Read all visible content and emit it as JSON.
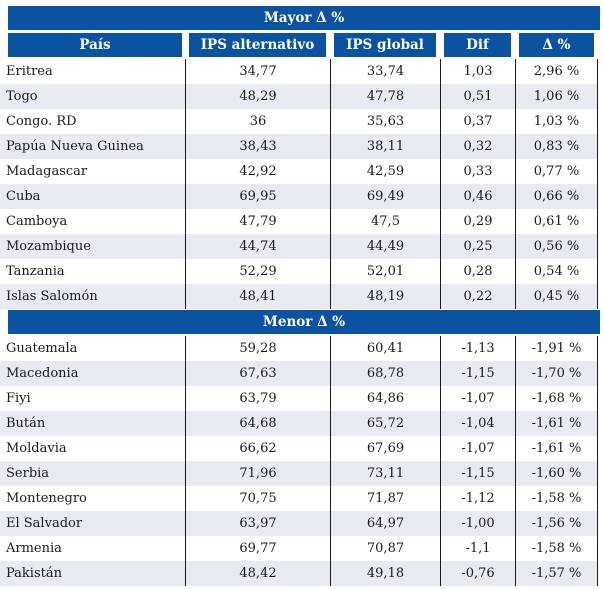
{
  "colors": {
    "header_blue": "#0b53a0",
    "stripe_light_blue": "#e9e9f2",
    "line_black": "#1a1a1a",
    "text": "#1a1a1a"
  },
  "columns": [
    "País",
    "IPS alternativo",
    "IPS global",
    "Dif",
    "Δ %"
  ],
  "sections": {
    "mayor": {
      "title": "Mayor Δ %"
    },
    "menor": {
      "title": "Menor Δ %"
    }
  },
  "mayor_rows": [
    {
      "country": "Eritrea",
      "ips_alt": "34,77",
      "ips_global": "33,74",
      "dif": "1,03",
      "delta_pct": "2,96 %"
    },
    {
      "country": "Togo",
      "ips_alt": "48,29",
      "ips_global": "47,78",
      "dif": "0,51",
      "delta_pct": "1,06 %"
    },
    {
      "country": "Congo. RD",
      "ips_alt": "36",
      "ips_global": "35,63",
      "dif": "0,37",
      "delta_pct": "1,03 %"
    },
    {
      "country": "Papúa Nueva Guinea",
      "ips_alt": "38,43",
      "ips_global": "38,11",
      "dif": "0,32",
      "delta_pct": "0,83 %"
    },
    {
      "country": "Madagascar",
      "ips_alt": "42,92",
      "ips_global": "42,59",
      "dif": "0,33",
      "delta_pct": "0,77 %"
    },
    {
      "country": "Cuba",
      "ips_alt": "69,95",
      "ips_global": "69,49",
      "dif": "0,46",
      "delta_pct": "0,66 %"
    },
    {
      "country": "Camboya",
      "ips_alt": "47,79",
      "ips_global": "47,5",
      "dif": "0,29",
      "delta_pct": "0,61 %"
    },
    {
      "country": "Mozambique",
      "ips_alt": "44,74",
      "ips_global": "44,49",
      "dif": "0,25",
      "delta_pct": "0,56 %"
    },
    {
      "country": "Tanzania",
      "ips_alt": "52,29",
      "ips_global": "52,01",
      "dif": "0,28",
      "delta_pct": "0,54 %"
    },
    {
      "country": "Islas Salomón",
      "ips_alt": "48,41",
      "ips_global": "48,19",
      "dif": "0,22",
      "delta_pct": "0,45 %"
    }
  ],
  "menor_rows": [
    {
      "country": "Guatemala",
      "ips_alt": "59,28",
      "ips_global": "60,41",
      "dif": "-1,13",
      "delta_pct": "-1,91 %"
    },
    {
      "country": "Macedonia",
      "ips_alt": "67,63",
      "ips_global": "68,78",
      "dif": "-1,15",
      "delta_pct": "-1,70 %"
    },
    {
      "country": "Fiyi",
      "ips_alt": "63,79",
      "ips_global": "64,86",
      "dif": "-1,07",
      "delta_pct": "-1,68 %"
    },
    {
      "country": "Bután",
      "ips_alt": "64,68",
      "ips_global": "65,72",
      "dif": "-1,04",
      "delta_pct": "-1,61 %"
    },
    {
      "country": "Moldavia",
      "ips_alt": "66,62",
      "ips_global": "67,69",
      "dif": "-1,07",
      "delta_pct": "-1,61 %"
    },
    {
      "country": "Serbia",
      "ips_alt": "71,96",
      "ips_global": "73,11",
      "dif": "-1,15",
      "delta_pct": "-1,60 %"
    },
    {
      "country": "Montenegro",
      "ips_alt": "70,75",
      "ips_global": "71,87",
      "dif": "-1,12",
      "delta_pct": "-1,58 %"
    },
    {
      "country": "El Salvador",
      "ips_alt": "63,97",
      "ips_global": "64,97",
      "dif": "-1,00",
      "delta_pct": "-1,56 %"
    },
    {
      "country": "Armenia",
      "ips_alt": "69,77",
      "ips_global": "70,87",
      "dif": "-1,1",
      "delta_pct": "-1,58 %"
    },
    {
      "country": "Pakistán",
      "ips_alt": "48,42",
      "ips_global": "49,18",
      "dif": "-0,76",
      "delta_pct": "-1,57 %"
    }
  ]
}
